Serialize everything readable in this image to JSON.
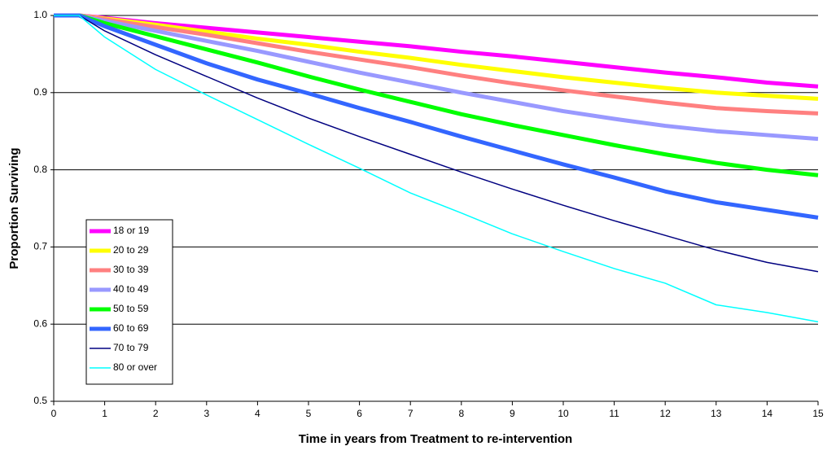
{
  "chart_data": {
    "type": "line",
    "x_label": "Time in years from Treatment to re-intervention",
    "y_label": "Proportion Surviving",
    "x": [
      0,
      0.5,
      1,
      2,
      3,
      4,
      5,
      6,
      7,
      8,
      9,
      10,
      11,
      12,
      13,
      14,
      15
    ],
    "xlim": [
      0,
      15
    ],
    "xticks": [
      0,
      1,
      2,
      3,
      4,
      5,
      6,
      7,
      8,
      9,
      10,
      11,
      12,
      13,
      14,
      15
    ],
    "ylim": [
      0.5,
      1
    ],
    "yticks": [
      0.5,
      0.6,
      0.7,
      0.8,
      0.9,
      {
        "value": 1,
        "label": "1.0"
      }
    ],
    "grid": true,
    "legend": "lower left",
    "series": [
      {
        "name": "18 or 19",
        "color": "#ff00ff",
        "width": 5,
        "values": [
          1,
          1,
          0.997,
          0.99,
          0.984,
          0.978,
          0.972,
          0.966,
          0.96,
          0.953,
          0.947,
          0.94,
          0.933,
          0.926,
          0.92,
          0.913,
          0.908
        ]
      },
      {
        "name": "20 to 29",
        "color": "#ffff00",
        "width": 5,
        "values": [
          1,
          1,
          0.996,
          0.988,
          0.979,
          0.97,
          0.962,
          0.953,
          0.945,
          0.936,
          0.928,
          0.92,
          0.913,
          0.906,
          0.9,
          0.896,
          0.892
        ]
      },
      {
        "name": "30 to 39",
        "color": "#ff8080",
        "width": 5,
        "values": [
          1,
          1,
          0.995,
          0.985,
          0.975,
          0.964,
          0.953,
          0.943,
          0.933,
          0.922,
          0.912,
          0.903,
          0.895,
          0.887,
          0.88,
          0.876,
          0.873
        ]
      },
      {
        "name": "40 to 49",
        "color": "#9999ff",
        "width": 5,
        "values": [
          1,
          1,
          0.993,
          0.98,
          0.967,
          0.954,
          0.94,
          0.926,
          0.913,
          0.9,
          0.888,
          0.876,
          0.866,
          0.857,
          0.85,
          0.845,
          0.84
        ]
      },
      {
        "name": "50 to 59",
        "color": "#00ff00",
        "width": 5,
        "values": [
          1,
          1,
          0.99,
          0.973,
          0.956,
          0.939,
          0.921,
          0.904,
          0.888,
          0.872,
          0.858,
          0.845,
          0.832,
          0.82,
          0.809,
          0.8,
          0.793
        ]
      },
      {
        "name": "60 to 69",
        "color": "#3366ff",
        "width": 5,
        "values": [
          1,
          1,
          0.986,
          0.962,
          0.938,
          0.917,
          0.899,
          0.88,
          0.862,
          0.843,
          0.825,
          0.807,
          0.79,
          0.772,
          0.758,
          0.748,
          0.738
        ]
      },
      {
        "name": "70 to 79",
        "color": "#000080",
        "width": 1.5,
        "values": [
          1,
          1,
          0.98,
          0.949,
          0.921,
          0.893,
          0.867,
          0.843,
          0.82,
          0.797,
          0.775,
          0.754,
          0.734,
          0.715,
          0.696,
          0.68,
          0.668
        ]
      },
      {
        "name": "80 or over",
        "color": "#00ffff",
        "width": 1.5,
        "values": [
          1,
          1,
          0.972,
          0.93,
          0.897,
          0.865,
          0.833,
          0.802,
          0.77,
          0.744,
          0.717,
          0.694,
          0.672,
          0.653,
          0.625,
          0.615,
          0.603
        ]
      }
    ]
  }
}
